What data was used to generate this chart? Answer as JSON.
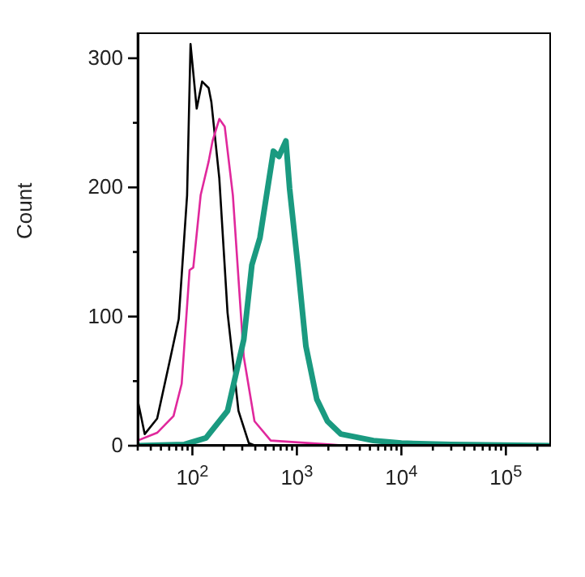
{
  "chart_data": {
    "type": "line",
    "ylabel": "Count",
    "log": "x",
    "marker": "none",
    "line_style": "solid",
    "xlim": [
      30,
      270000
    ],
    "ylim": [
      0,
      320
    ],
    "xticks": [
      {
        "value": 30,
        "label": null
      },
      {
        "value": 40,
        "label": null
      },
      {
        "value": 50,
        "label": null
      },
      {
        "value": 60,
        "label": null
      },
      {
        "value": 70,
        "label": null
      },
      {
        "value": 80,
        "label": null
      },
      {
        "value": 90,
        "label": null
      },
      {
        "value": 100,
        "label": "10$^{2}$"
      },
      {
        "value": 200,
        "label": null
      },
      {
        "value": 300,
        "label": null
      },
      {
        "value": 400,
        "label": null
      },
      {
        "value": 500,
        "label": null
      },
      {
        "value": 600,
        "label": null
      },
      {
        "value": 700,
        "label": null
      },
      {
        "value": 800,
        "label": null
      },
      {
        "value": 900,
        "label": null
      },
      {
        "value": 1000,
        "label": "10$^{3}$"
      },
      {
        "value": 2000,
        "label": null
      },
      {
        "value": 3000,
        "label": null
      },
      {
        "value": 4000,
        "label": null
      },
      {
        "value": 5000,
        "label": null
      },
      {
        "value": 6000,
        "label": null
      },
      {
        "value": 7000,
        "label": null
      },
      {
        "value": 8000,
        "label": null
      },
      {
        "value": 9000,
        "label": null
      },
      {
        "value": 10000,
        "label": "10$^{4}$"
      },
      {
        "value": 20000,
        "label": null
      },
      {
        "value": 30000,
        "label": null
      },
      {
        "value": 40000,
        "label": null
      },
      {
        "value": 50000,
        "label": null
      },
      {
        "value": 60000,
        "label": null
      },
      {
        "value": 70000,
        "label": null
      },
      {
        "value": 80000,
        "label": null
      },
      {
        "value": 90000,
        "label": null
      },
      {
        "value": 100000,
        "label": "10$^{5}$"
      },
      {
        "value": 200000,
        "label": null
      }
    ],
    "yticks": [
      0,
      {
        "value": 50,
        "label": null
      },
      100,
      {
        "value": 150,
        "label": null
      },
      200,
      {
        "value": 250,
        "label": null
      },
      300
    ],
    "series": [
      {
        "color": "#000000",
        "x": [
          30,
          35,
          46,
          62,
          74,
          89,
          96,
          110,
          124,
          143,
          152,
          181,
          217,
          276,
          347,
          400,
          270000
        ],
        "values": [
          35,
          9,
          21,
          69,
          98,
          194,
          311,
          261,
          282,
          277,
          266,
          207,
          103,
          27,
          2,
          0,
          0
        ]
      },
      {
        "color": "#e0289c",
        "x": [
          30,
          46,
          66,
          79,
          94,
          102,
          120,
          143,
          156,
          181,
          204,
          244,
          310,
          393,
          562,
          2000,
          3000,
          270000
        ],
        "values": [
          4,
          10,
          23,
          48,
          136,
          138,
          194,
          220,
          236,
          253,
          247,
          194,
          69,
          19,
          4,
          1,
          0,
          0
        ]
      },
      {
        "color": "#1a9a80",
        "x": [
          30,
          84,
          135,
          217,
          310,
          371,
          443,
          596,
          673,
          785,
          852,
          1020,
          1220,
          1550,
          1960,
          2640,
          5400,
          10000,
          30000,
          270000
        ],
        "values": [
          0,
          1,
          6,
          27,
          82,
          140,
          161,
          228,
          224,
          236,
          199,
          140,
          77,
          36,
          19,
          9,
          4,
          2,
          1,
          0
        ]
      }
    ]
  }
}
